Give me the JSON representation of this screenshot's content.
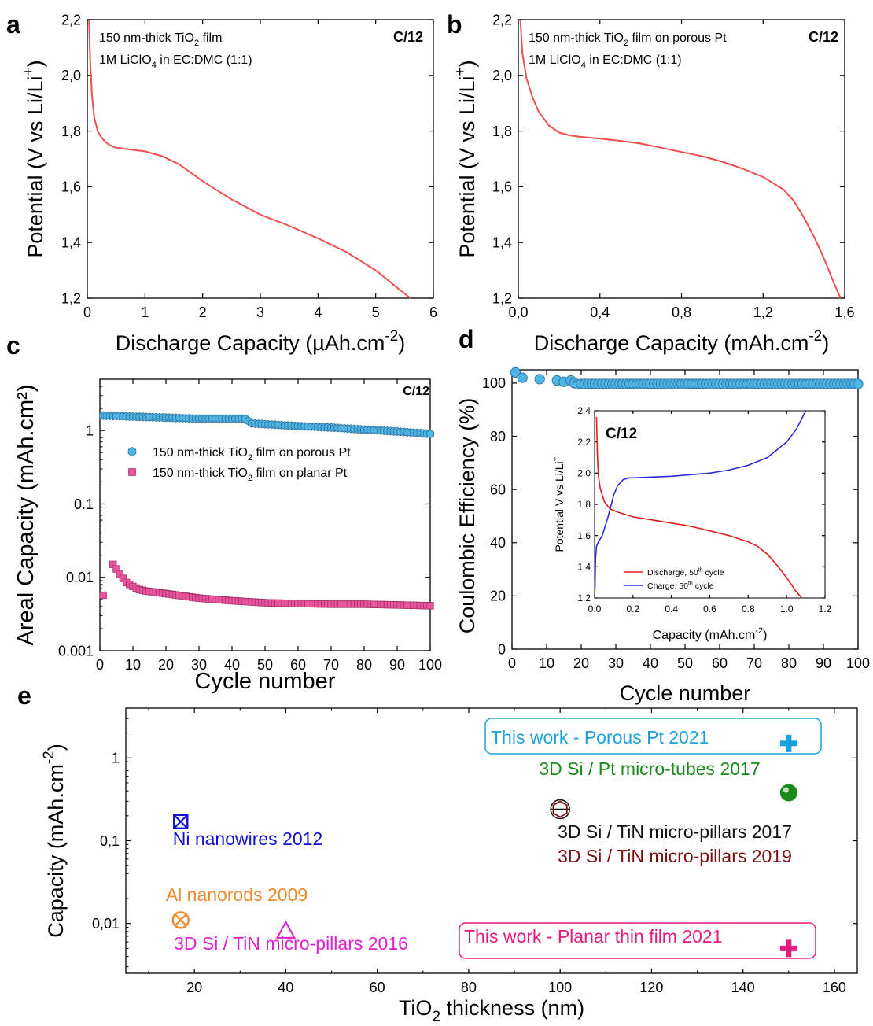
{
  "colors": {
    "discharge": "#ef4f4f",
    "charge": "#2b2bd8",
    "porous": "#4fb3e6",
    "planar": "#e8559c"
  },
  "chart_data": [
    {
      "panel": "a",
      "type": "line",
      "tag": "C/12",
      "annotation_lines": [
        [
          "150 nm-thick TiO",
          "2",
          " film"
        ],
        [
          "1M LiClO",
          "4",
          " in EC:DMC (1:1)"
        ]
      ],
      "xlabel": [
        "Discharge Capacity (µAh.cm",
        "-2",
        ")"
      ],
      "ylabel": [
        "Potential (V vs Li/Li",
        "+",
        ")"
      ],
      "xlim": [
        0,
        6
      ],
      "ylim": [
        1.2,
        2.2
      ],
      "xticks": [
        0,
        1,
        2,
        3,
        4,
        5,
        6
      ],
      "xtick_labels": [
        "0",
        "1",
        "2",
        "3",
        "4",
        "5",
        "6"
      ],
      "yticks": [
        1.2,
        1.4,
        1.6,
        1.8,
        2.0,
        2.2
      ],
      "ytick_labels": [
        "1,2",
        "1,4",
        "1,6",
        "1,8",
        "2,0",
        "2,2"
      ],
      "series": [
        {
          "color": "#ef4f4f",
          "x": [
            0.03,
            0.05,
            0.08,
            0.12,
            0.18,
            0.25,
            0.32,
            0.4,
            0.5,
            0.7,
            1.0,
            1.3,
            1.6,
            2.0,
            2.5,
            3.0,
            3.5,
            4.0,
            4.5,
            5.0,
            5.3,
            5.6
          ],
          "y": [
            2.2,
            2.05,
            1.93,
            1.85,
            1.8,
            1.775,
            1.76,
            1.748,
            1.74,
            1.735,
            1.727,
            1.71,
            1.68,
            1.62,
            1.555,
            1.5,
            1.46,
            1.415,
            1.365,
            1.3,
            1.25,
            1.2
          ]
        }
      ]
    },
    {
      "panel": "b",
      "type": "line",
      "tag": "C/12",
      "annotation_lines": [
        [
          "150 nm-thick TiO",
          "2",
          " film on porous Pt"
        ],
        [
          "1M LiClO",
          "4",
          " in EC:DMC (1:1)"
        ]
      ],
      "xlabel": [
        "Discharge Capacity (mAh.cm",
        "-2",
        ")"
      ],
      "ylabel": [
        "Potential (V vs Li/Li",
        "+",
        ")"
      ],
      "xlim": [
        0,
        1.6
      ],
      "ylim": [
        1.2,
        2.2
      ],
      "xticks": [
        0,
        0.4,
        0.8,
        1.2,
        1.6
      ],
      "xtick_labels": [
        "0,0",
        "0,4",
        "0,8",
        "1,2",
        "1,6"
      ],
      "yticks": [
        1.2,
        1.4,
        1.6,
        1.8,
        2.0,
        2.2
      ],
      "ytick_labels": [
        "1,2",
        "1,4",
        "1,6",
        "1,8",
        "2,0",
        "2,2"
      ],
      "series": [
        {
          "color": "#ef4f4f",
          "x": [
            0.01,
            0.02,
            0.04,
            0.07,
            0.1,
            0.15,
            0.2,
            0.25,
            0.3,
            0.4,
            0.5,
            0.6,
            0.7,
            0.8,
            0.9,
            1.0,
            1.1,
            1.2,
            1.3,
            1.35,
            1.4,
            1.45,
            1.5,
            1.55,
            1.58
          ],
          "y": [
            2.2,
            2.08,
            1.99,
            1.92,
            1.87,
            1.82,
            1.795,
            1.785,
            1.78,
            1.773,
            1.765,
            1.755,
            1.74,
            1.725,
            1.71,
            1.69,
            1.665,
            1.635,
            1.59,
            1.55,
            1.49,
            1.42,
            1.34,
            1.25,
            1.2
          ]
        }
      ]
    },
    {
      "panel": "c",
      "type": "scatter",
      "tag": "C/12",
      "log_y": true,
      "xlabel": [
        "Cycle number"
      ],
      "ylabel": [
        "Areal Capacity (mAh.cm²)"
      ],
      "xlim": [
        0,
        100
      ],
      "ylim": [
        0.001,
        5
      ],
      "xticks": [
        0,
        10,
        20,
        30,
        40,
        50,
        60,
        70,
        80,
        90,
        100
      ],
      "xtick_labels": [
        "0",
        "10",
        "20",
        "30",
        "40",
        "50",
        "60",
        "70",
        "80",
        "90",
        "100"
      ],
      "yticks": [
        0.001,
        0.01,
        0.1,
        1
      ],
      "ytick_labels": [
        "0.001",
        "0.01",
        "0.1",
        "1"
      ],
      "legend_position": "center-left",
      "series": [
        {
          "name": [
            "150 nm-thick TiO",
            "2",
            " film on porous Pt"
          ],
          "color": "#4fb3e6",
          "marker": "hexagon",
          "x_start": 1,
          "x_end": 100,
          "keypoints": [
            [
              1,
              1.6
            ],
            [
              10,
              1.55
            ],
            [
              20,
              1.5
            ],
            [
              30,
              1.45
            ],
            [
              44,
              1.45
            ],
            [
              46,
              1.25
            ],
            [
              60,
              1.15
            ],
            [
              70,
              1.1
            ],
            [
              80,
              1.03
            ],
            [
              90,
              0.97
            ],
            [
              100,
              0.9
            ]
          ]
        },
        {
          "name": [
            "150 nm-thick TiO",
            "2",
            " film on planar Pt"
          ],
          "color": "#e8559c",
          "marker": "square",
          "x_start": 1,
          "x_end": 100,
          "keypoints": [
            [
              1,
              0.0057
            ],
            [
              4,
              0.015
            ],
            [
              5,
              0.013
            ],
            [
              6,
              0.011
            ],
            [
              8,
              0.0085
            ],
            [
              10,
              0.0075
            ],
            [
              12,
              0.0068
            ],
            [
              14,
              0.0065
            ],
            [
              20,
              0.006
            ],
            [
              30,
              0.0052
            ],
            [
              40,
              0.0048
            ],
            [
              50,
              0.0045
            ],
            [
              60,
              0.0044
            ],
            [
              70,
              0.0043
            ],
            [
              80,
              0.0043
            ],
            [
              90,
              0.0042
            ],
            [
              100,
              0.0041
            ]
          ]
        }
      ]
    },
    {
      "panel": "d",
      "type": "scatter",
      "xlabel": [
        "Cycle number"
      ],
      "ylabel": [
        "Coulombic Efficiency (%)"
      ],
      "xlim": [
        0,
        100
      ],
      "ylim": [
        0,
        105
      ],
      "xticks": [
        0,
        10,
        20,
        30,
        40,
        50,
        60,
        70,
        80,
        90,
        100
      ],
      "xtick_labels": [
        "0",
        "10",
        "20",
        "30",
        "40",
        "50",
        "60",
        "70",
        "80",
        "90",
        "100"
      ],
      "yticks": [
        0,
        20,
        40,
        60,
        80,
        100
      ],
      "ytick_labels": [
        "0",
        "20",
        "40",
        "60",
        "80",
        "100"
      ],
      "series": [
        {
          "color": "#4fb3e6",
          "marker": "circle",
          "x": [
            1,
            3,
            8,
            13,
            15,
            17,
            18,
            19,
            20,
            21,
            22,
            23,
            24,
            25,
            26,
            27,
            28,
            29,
            30,
            31,
            32,
            33,
            34,
            35,
            36,
            37,
            38,
            39,
            40,
            41,
            42,
            43,
            44,
            45,
            46,
            47,
            48,
            49,
            50,
            51,
            52,
            53,
            54,
            55,
            56,
            57,
            58,
            59,
            60,
            61,
            62,
            63,
            64,
            65,
            66,
            67,
            68,
            69,
            70,
            71,
            72,
            73,
            74,
            75,
            76,
            77,
            78,
            79,
            80,
            81,
            82,
            83,
            84,
            85,
            86,
            87,
            88,
            89,
            90,
            91,
            92,
            93,
            94,
            95,
            96,
            97,
            98,
            99,
            100
          ],
          "y": [
            104,
            102,
            101.5,
            101,
            100.5,
            101,
            100,
            99.5,
            99.7,
            99.7,
            99.7,
            99.7,
            99.7,
            99.7,
            99.7,
            99.7,
            99.7,
            99.7,
            99.7,
            99.7,
            99.7,
            99.7,
            99.7,
            99.7,
            99.7,
            99.7,
            99.7,
            99.7,
            99.7,
            99.7,
            99.7,
            99.7,
            99.7,
            99.7,
            99.7,
            99.7,
            99.7,
            99.7,
            99.7,
            99.7,
            99.7,
            99.7,
            99.7,
            99.7,
            99.7,
            99.7,
            99.7,
            99.7,
            99.7,
            99.7,
            99.7,
            99.7,
            99.7,
            99.7,
            99.7,
            99.7,
            99.7,
            99.7,
            99.7,
            99.7,
            99.7,
            99.7,
            99.7,
            99.7,
            99.7,
            99.7,
            99.7,
            99.7,
            99.7,
            99.7,
            99.7,
            99.7,
            99.7,
            99.7,
            99.7,
            99.7,
            99.7,
            99.7,
            99.7,
            99.7,
            99.7,
            99.7,
            99.7,
            99.7,
            99.7,
            99.7,
            99.7,
            99.7,
            99.7
          ]
        }
      ],
      "inset": {
        "type": "line",
        "tag": "C/12",
        "xlabel": [
          "Capacity (mAh.cm",
          "-2",
          ")"
        ],
        "ylabel": [
          "Potential V vs Li/Li",
          "+",
          ""
        ],
        "xlim": [
          0,
          1.2
        ],
        "ylim": [
          1.2,
          2.4
        ],
        "xticks": [
          0,
          0.2,
          0.4,
          0.6,
          0.8,
          1.0,
          1.2
        ],
        "xtick_labels": [
          "0.0",
          "0.2",
          "0.4",
          "0.6",
          "0.8",
          "1.0",
          "1.2"
        ],
        "yticks": [
          1.2,
          1.4,
          1.6,
          1.8,
          2.0,
          2.2,
          2.4
        ],
        "ytick_labels": [
          "1.2",
          "1.4",
          "1.6",
          "1.8",
          "2.0",
          "2.2",
          "2.4"
        ],
        "legend_position": "bottom-left",
        "series": [
          {
            "name": [
              "Discharge, 50",
              "th",
              " cycle"
            ],
            "color": "#e01b1b",
            "x": [
              0.01,
              0.015,
              0.02,
              0.03,
              0.05,
              0.08,
              0.12,
              0.2,
              0.3,
              0.4,
              0.5,
              0.6,
              0.7,
              0.8,
              0.85,
              0.9,
              0.95,
              1.0,
              1.05,
              1.08
            ],
            "y": [
              2.36,
              2.1,
              1.98,
              1.9,
              1.82,
              1.77,
              1.75,
              1.72,
              1.7,
              1.68,
              1.66,
              1.63,
              1.6,
              1.56,
              1.53,
              1.48,
              1.41,
              1.33,
              1.24,
              1.2
            ]
          },
          {
            "name": [
              "Charge, 50",
              "th",
              " cycle"
            ],
            "color": "#2b2bd8",
            "x": [
              0.002,
              0.005,
              0.01,
              0.02,
              0.04,
              0.07,
              0.1,
              0.12,
              0.15,
              0.18,
              0.2,
              0.3,
              0.4,
              0.5,
              0.6,
              0.7,
              0.8,
              0.9,
              1.0,
              1.05,
              1.1
            ],
            "y": [
              1.25,
              1.45,
              1.53,
              1.56,
              1.6,
              1.72,
              1.86,
              1.92,
              1.96,
              1.97,
              1.97,
              1.975,
              1.98,
              1.99,
              2.0,
              2.02,
              2.05,
              2.1,
              2.2,
              2.28,
              2.4
            ]
          }
        ]
      }
    },
    {
      "panel": "e",
      "type": "scatter",
      "log_y": true,
      "xlabel": [
        "TiO",
        "2",
        " thickness (nm)"
      ],
      "ylabel": [
        "Capacity (mAh.cm",
        "-2",
        ")"
      ],
      "xlim": [
        5,
        165
      ],
      "ylim": [
        0.0025,
        4
      ],
      "xticks": [
        20,
        40,
        60,
        80,
        100,
        120,
        140,
        160
      ],
      "xtick_labels": [
        "20",
        "40",
        "60",
        "80",
        "100",
        "120",
        "140",
        "160"
      ],
      "yticks": [
        0.01,
        0.1,
        1
      ],
      "ytick_labels": [
        "0,01",
        "0,1",
        "1"
      ],
      "points": [
        {
          "label": "This work - Porous Pt 2021",
          "x": 150,
          "y": 1.5,
          "marker": "plus",
          "color": "#1ba1e2",
          "boxed": true
        },
        {
          "label": "3D Si / Pt micro-tubes 2017",
          "x": 150,
          "y": 0.38,
          "marker": "sphere",
          "color": "#1a8a1a",
          "boxed": false
        },
        {
          "label": "3D Si / TiN micro-pillars 2017",
          "x": 100,
          "y": 0.24,
          "marker": "circle-line",
          "color": "#111111",
          "boxed": false
        },
        {
          "label": "3D Si / TiN micro-pillars 2019",
          "x": 100,
          "y": 0.24,
          "marker": "hexagon",
          "color": "#7a1010",
          "boxed": false
        },
        {
          "label": "Ni nanowires 2012",
          "x": 17,
          "y": 0.17,
          "marker": "square-x",
          "color": "#1010d0",
          "boxed": false
        },
        {
          "label": "Al nanorods 2009",
          "x": 17,
          "y": 0.011,
          "marker": "circle-x",
          "color": "#f0882a",
          "boxed": false
        },
        {
          "label": "3D Si / TiN micro-pillars 2016",
          "x": 40,
          "y": 0.008,
          "marker": "triangle",
          "color": "#e020d0",
          "boxed": false
        },
        {
          "label": "This work - Planar thin film 2021",
          "x": 150,
          "y": 0.005,
          "marker": "plus",
          "color": "#e8197e",
          "boxed": true
        }
      ]
    }
  ]
}
